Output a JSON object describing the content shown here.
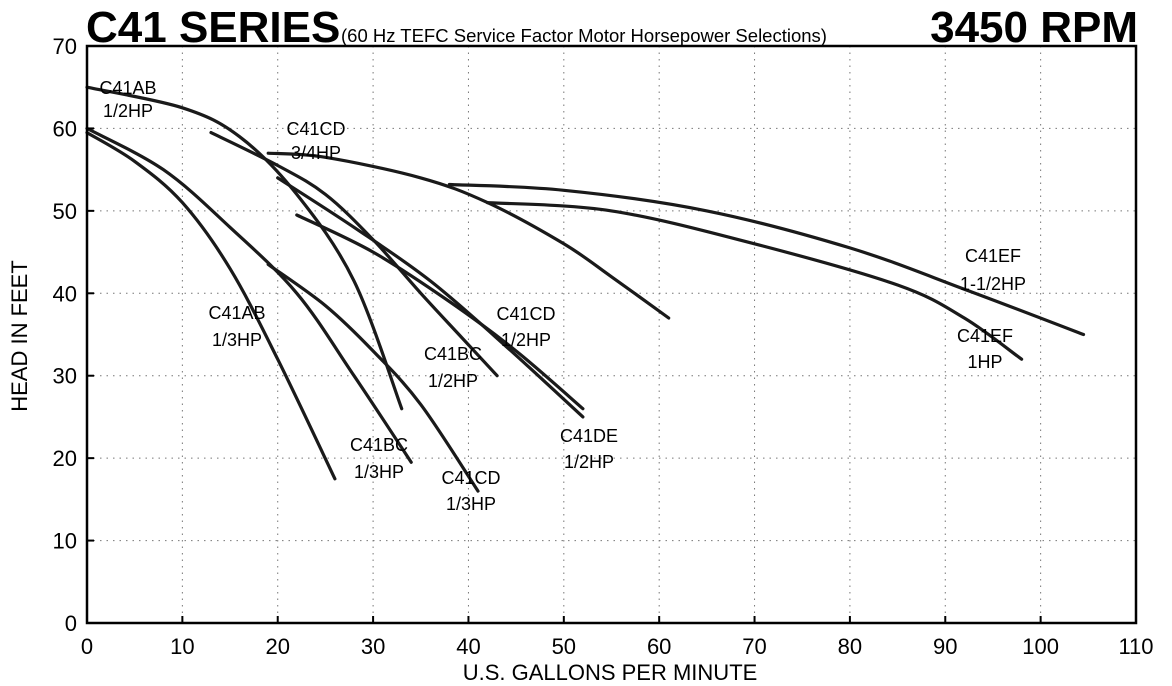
{
  "chart_data": {
    "type": "line",
    "title": "C41 SERIES",
    "subtitle": "(60 Hz TEFC Service Factor Motor Horsepower Selections)",
    "speed": "3450 RPM",
    "xlabel": "U.S. GALLONS PER MINUTE",
    "ylabel": "HEAD IN FEET",
    "xlim": [
      0,
      110
    ],
    "ylim": [
      0,
      70
    ],
    "xticks": [
      0,
      10,
      20,
      30,
      40,
      50,
      60,
      70,
      80,
      90,
      100,
      110
    ],
    "yticks": [
      0,
      10,
      20,
      30,
      40,
      50,
      60,
      70
    ],
    "grid": true,
    "series": [
      {
        "name": "C41AB 1/2HP",
        "x": [
          0,
          10,
          16,
          22,
          28,
          33
        ],
        "y": [
          65,
          62.5,
          59,
          52,
          41.5,
          26
        ]
      },
      {
        "name": "C41AB 1/3HP",
        "x": [
          0,
          5,
          10,
          15,
          20,
          26
        ],
        "y": [
          59.5,
          56,
          51,
          43,
          32,
          17.5
        ]
      },
      {
        "name": "C41BC 1/3HP",
        "x": [
          0,
          8,
          15,
          22,
          28,
          34
        ],
        "y": [
          60,
          55,
          48,
          40,
          30,
          19.5
        ]
      },
      {
        "name": "C41CD 1/3HP",
        "x": [
          19,
          25,
          30,
          35,
          41
        ],
        "y": [
          43.5,
          38.5,
          33,
          26.5,
          16
        ]
      },
      {
        "name": "C41BC 1/2HP",
        "x": [
          13,
          20,
          25,
          30,
          35,
          39,
          43
        ],
        "y": [
          59.5,
          55.5,
          52,
          46.5,
          40,
          35,
          30
        ]
      },
      {
        "name": "C41CD 1/2HP",
        "x": [
          20,
          28,
          36,
          44,
          52
        ],
        "y": [
          54,
          48,
          41.5,
          33.5,
          25
        ]
      },
      {
        "name": "C41DE 1/2HP",
        "x": [
          22,
          30,
          38,
          45,
          52
        ],
        "y": [
          49.5,
          45,
          39,
          33,
          26
        ]
      },
      {
        "name": "C41CD 3/4HP",
        "x": [
          19,
          25,
          35,
          42,
          50,
          55,
          61
        ],
        "y": [
          57,
          56.5,
          54,
          51,
          46,
          42,
          37
        ]
      },
      {
        "name": "C41EF 1HP",
        "x": [
          42,
          55,
          70,
          85,
          92,
          98
        ],
        "y": [
          51,
          50,
          46,
          41,
          37,
          32
        ]
      },
      {
        "name": "C41EF 1-1/2HP",
        "x": [
          38,
          50,
          65,
          80,
          92,
          104.5
        ],
        "y": [
          53.2,
          52.5,
          50,
          45.5,
          40.5,
          35
        ]
      }
    ],
    "annotations": [
      {
        "model": "C41AB",
        "hp": "1/2HP"
      },
      {
        "model": "C41CD",
        "hp": "3/4HP"
      },
      {
        "model": "C41EF",
        "hp": "1-1/2HP"
      },
      {
        "model": "C41AB",
        "hp": "1/3HP"
      },
      {
        "model": "C41CD",
        "hp": "1/2HP"
      },
      {
        "model": "C41BC",
        "hp": "1/2HP"
      },
      {
        "model": "C41EF",
        "hp": "1HP"
      },
      {
        "model": "C41DE",
        "hp": "1/2HP"
      },
      {
        "model": "C41BC",
        "hp": "1/3HP"
      },
      {
        "model": "C41CD",
        "hp": "1/3HP"
      }
    ]
  }
}
